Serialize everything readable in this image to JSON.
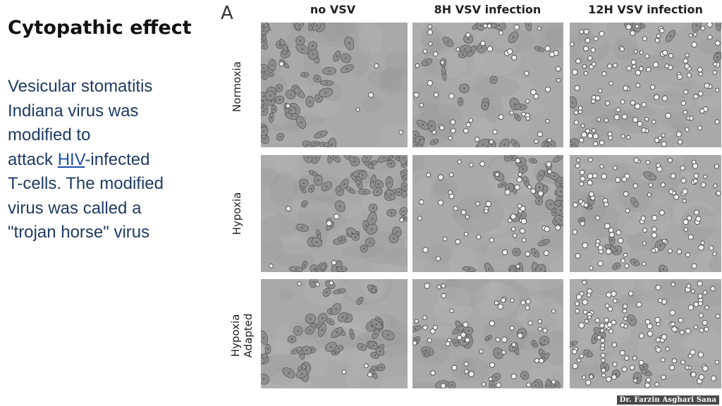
{
  "slide": {
    "title": "Cytopathic effect",
    "body": {
      "line1": "Vesicular stomatitis",
      "line2": "Indiana virus was",
      "line3": "modified to",
      "line4_before": "attack ",
      "line4_link": "HIV",
      "line4_after": "-infected",
      "line5": "T-cells. The modified",
      "line6": "virus was called a",
      "line7": "\"trojan horse\" virus"
    },
    "credit": "Dr. Farzin Asghari Sana"
  },
  "figure": {
    "panel_label": "A",
    "columns": [
      "no VSV",
      "8H VSV infection",
      "12H VSV infection"
    ],
    "rows": [
      {
        "label_line1": "Normoxia",
        "label_line2": ""
      },
      {
        "label_line1": "Hypoxia",
        "label_line2": ""
      },
      {
        "label_line1": "Hypoxia",
        "label_line2": "Adapted"
      }
    ]
  },
  "colors": {
    "title": "#111111",
    "body_text": "#1f3b63",
    "link": "#1f4fa8",
    "micrograph_background": "#a9a9a9",
    "credit_background": "#4a4a4a"
  }
}
